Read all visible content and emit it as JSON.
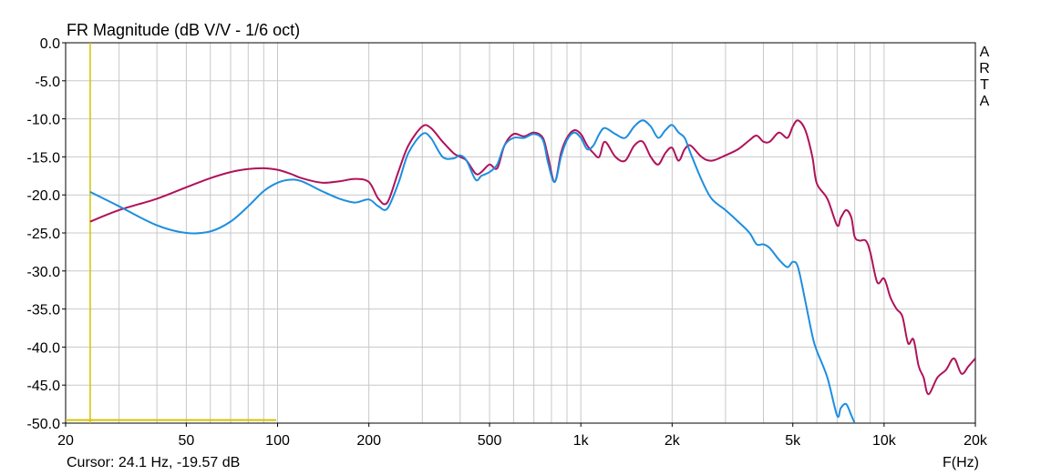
{
  "chart_data": {
    "type": "line",
    "title": "FR Magnitude (dB V/V - 1/6 oct)",
    "xlabel": "F(Hz)",
    "ylabel": "",
    "x_scale": "log",
    "xlim": [
      20,
      20000
    ],
    "ylim": [
      -50,
      0
    ],
    "grid": true,
    "x_ticks": [
      {
        "value": 20,
        "label": "20"
      },
      {
        "value": 50,
        "label": "50"
      },
      {
        "value": 100,
        "label": "100"
      },
      {
        "value": 200,
        "label": "200"
      },
      {
        "value": 500,
        "label": "500"
      },
      {
        "value": 1000,
        "label": "1k"
      },
      {
        "value": 2000,
        "label": "2k"
      },
      {
        "value": 5000,
        "label": "5k"
      },
      {
        "value": 10000,
        "label": "10k"
      },
      {
        "value": 20000,
        "label": "20k"
      }
    ],
    "y_ticks": [
      {
        "value": 0,
        "label": "0.0"
      },
      {
        "value": -5,
        "label": "-5.0"
      },
      {
        "value": -10,
        "label": "-10.0"
      },
      {
        "value": -15,
        "label": "-15.0"
      },
      {
        "value": -20,
        "label": "-20.0"
      },
      {
        "value": -25,
        "label": "-25.0"
      },
      {
        "value": -30,
        "label": "-30.0"
      },
      {
        "value": -35,
        "label": "-35.0"
      },
      {
        "value": -40,
        "label": "-40.0"
      },
      {
        "value": -45,
        "label": "-45.0"
      },
      {
        "value": -50,
        "label": "-50.0"
      }
    ],
    "watermark": "ARTA",
    "cursor": {
      "text": "Cursor: 24.1 Hz, -19.57 dB",
      "freq": 24.1,
      "db": -19.57,
      "hline_db": -49.6,
      "hline_end_freq": 99,
      "color": "#d4c400"
    },
    "colors": {
      "grid": "#c8c8c8",
      "frame": "#000000"
    },
    "series": [
      {
        "color": "#b0125a",
        "x": [
          24.1,
          30,
          40,
          50,
          60,
          70,
          80,
          90,
          100,
          110,
          120,
          140,
          160,
          180,
          200,
          215,
          230,
          250,
          270,
          300,
          320,
          350,
          380,
          400,
          420,
          450,
          470,
          500,
          530,
          560,
          600,
          650,
          700,
          750,
          780,
          820,
          860,
          900,
          950,
          1000,
          1050,
          1100,
          1150,
          1200,
          1300,
          1400,
          1500,
          1600,
          1700,
          1800,
          1900,
          2000,
          2100,
          2200,
          2300,
          2500,
          2700,
          3000,
          3300,
          3600,
          3800,
          4000,
          4200,
          4500,
          4800,
          5000,
          5200,
          5500,
          5800,
          6000,
          6500,
          7000,
          7200,
          7500,
          7800,
          8000,
          8300,
          8700,
          9000,
          9500,
          10000,
          10500,
          11000,
          11500,
          12000,
          12500,
          13000,
          13500,
          14000,
          15000,
          16000,
          17000,
          18000,
          19000,
          20000
        ],
        "y": [
          -23.5,
          -22.0,
          -20.5,
          -19.0,
          -17.8,
          -17.0,
          -16.6,
          -16.5,
          -16.7,
          -17.2,
          -17.8,
          -18.4,
          -18.2,
          -17.9,
          -18.3,
          -20.5,
          -21.0,
          -17.0,
          -13.5,
          -11.0,
          -11.2,
          -13.0,
          -14.5,
          -15.0,
          -15.5,
          -17.2,
          -17.0,
          -16.0,
          -16.5,
          -13.5,
          -12.0,
          -12.3,
          -11.8,
          -12.5,
          -15.0,
          -18.3,
          -14.5,
          -12.5,
          -11.5,
          -12.0,
          -13.5,
          -14.5,
          -15.0,
          -13.0,
          -15.0,
          -15.5,
          -13.5,
          -13.0,
          -15.0,
          -16.0,
          -14.5,
          -13.8,
          -15.5,
          -14.0,
          -13.5,
          -15.0,
          -15.5,
          -14.8,
          -14.0,
          -12.8,
          -12.2,
          -13.0,
          -13.0,
          -11.8,
          -12.5,
          -11.0,
          -10.2,
          -11.5,
          -15.0,
          -18.5,
          -20.5,
          -24.0,
          -23.0,
          -22.0,
          -23.0,
          -25.5,
          -26.0,
          -26.0,
          -27.5,
          -31.5,
          -31.0,
          -33.5,
          -35.0,
          -36.0,
          -39.5,
          -39.0,
          -42.5,
          -44.0,
          -46.2,
          -44.0,
          -43.0,
          -41.5,
          -43.5,
          -42.5,
          -41.5
        ]
      },
      {
        "color": "#1d8ee0",
        "x": [
          24.1,
          30,
          40,
          50,
          60,
          70,
          80,
          90,
          100,
          110,
          120,
          140,
          160,
          180,
          200,
          215,
          230,
          250,
          270,
          300,
          320,
          350,
          380,
          400,
          420,
          450,
          470,
          500,
          530,
          560,
          600,
          650,
          700,
          750,
          780,
          820,
          860,
          900,
          950,
          1000,
          1050,
          1100,
          1150,
          1200,
          1300,
          1400,
          1500,
          1600,
          1700,
          1800,
          1900,
          2000,
          2100,
          2200,
          2300,
          2500,
          2700,
          3000,
          3300,
          3600,
          3800,
          4000,
          4200,
          4500,
          4800,
          5000,
          5200,
          5500,
          5800,
          6000,
          6500,
          7000,
          7200,
          7500,
          7800,
          8000
        ],
        "y": [
          -19.6,
          -21.5,
          -24.0,
          -25.0,
          -24.8,
          -23.5,
          -21.5,
          -19.5,
          -18.4,
          -18.0,
          -18.2,
          -19.5,
          -20.5,
          -21.0,
          -20.6,
          -21.5,
          -21.8,
          -18.5,
          -14.5,
          -12.0,
          -12.5,
          -15.0,
          -15.2,
          -14.8,
          -15.5,
          -18.0,
          -17.5,
          -17.0,
          -16.0,
          -13.5,
          -12.5,
          -12.5,
          -12.0,
          -12.8,
          -15.8,
          -18.3,
          -15.0,
          -12.8,
          -11.8,
          -12.5,
          -14.0,
          -13.5,
          -12.0,
          -11.2,
          -12.0,
          -12.5,
          -11.0,
          -10.2,
          -11.0,
          -12.5,
          -11.5,
          -10.8,
          -11.8,
          -12.5,
          -14.5,
          -18.0,
          -20.5,
          -22.0,
          -23.5,
          -25.0,
          -26.5,
          -26.5,
          -27.0,
          -28.5,
          -29.5,
          -28.8,
          -29.5,
          -34.0,
          -38.5,
          -40.5,
          -44.0,
          -49.0,
          -48.0,
          -47.5,
          -49.0,
          -50.0
        ]
      }
    ]
  }
}
